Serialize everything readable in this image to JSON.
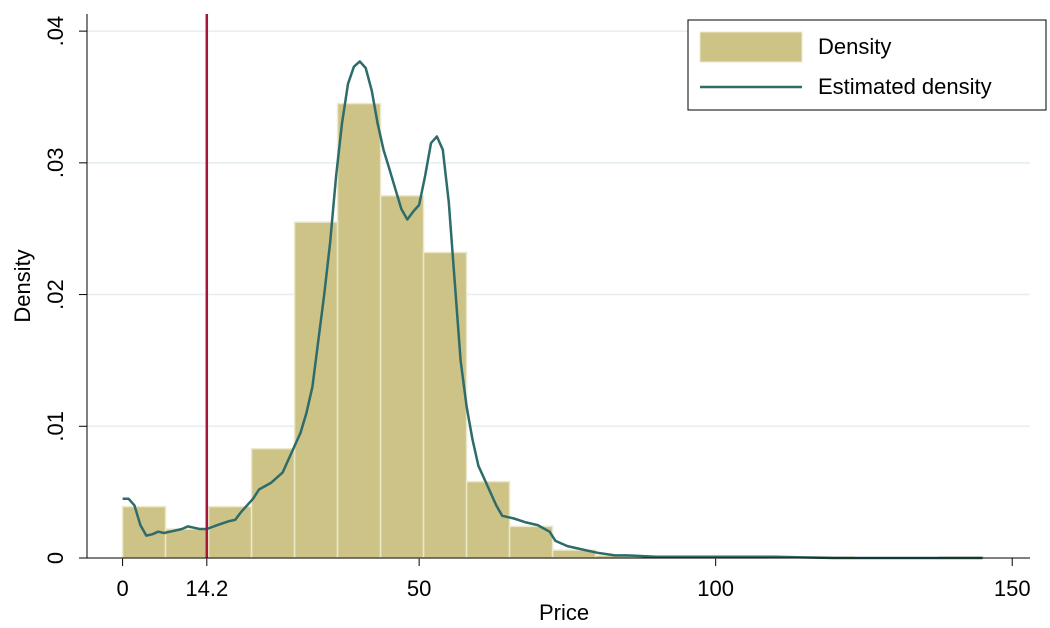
{
  "chart_data": {
    "type": "histogram",
    "x_label": "Price",
    "y_label": "Density",
    "bins": [
      0,
      7.25,
      14.5,
      21.75,
      29,
      36.25,
      43.5,
      50.75,
      58,
      65.25,
      72.5,
      79.75,
      87,
      94.25,
      101.5,
      108.75,
      116,
      123.25,
      130.5,
      137.75,
      145
    ],
    "series": [
      {
        "name": "Density",
        "color": "#cdc386",
        "values": [
          0.0039,
          0.0022,
          0.0039,
          0.0083,
          0.0255,
          0.0345,
          0.0275,
          0.0232,
          0.0058,
          0.0024,
          0.0006,
          0.0002,
          0.0001,
          0.0001,
          0.0001,
          0,
          0.0001,
          0,
          0,
          0.0001
        ]
      },
      {
        "name": "Estimated density",
        "color": "#2e6b6b",
        "x": [
          0,
          1,
          2,
          3,
          4,
          5,
          6,
          7,
          8,
          10,
          11,
          12,
          13,
          14.2,
          16,
          18,
          19,
          20,
          22,
          23,
          25,
          27,
          28,
          30,
          31,
          32,
          33,
          34,
          35,
          36,
          37,
          38,
          39,
          40,
          41,
          42,
          43,
          44,
          45,
          46,
          47,
          48,
          49,
          50,
          51,
          52,
          53,
          54,
          55,
          56,
          57,
          58,
          59,
          60,
          61,
          62,
          63,
          64,
          66,
          68,
          70,
          72,
          73,
          75,
          78,
          80,
          83,
          85,
          90,
          100,
          110,
          120,
          130,
          140,
          145
        ],
        "values": [
          0.0045,
          0.0045,
          0.004,
          0.0025,
          0.0017,
          0.0018,
          0.002,
          0.0019,
          0.002,
          0.0022,
          0.0024,
          0.0023,
          0.0022,
          0.0022,
          0.0025,
          0.0028,
          0.0029,
          0.0035,
          0.0045,
          0.0052,
          0.0057,
          0.0065,
          0.0075,
          0.0095,
          0.011,
          0.013,
          0.0165,
          0.02,
          0.024,
          0.029,
          0.033,
          0.036,
          0.0373,
          0.0377,
          0.0372,
          0.0355,
          0.033,
          0.031,
          0.0295,
          0.028,
          0.0265,
          0.0257,
          0.0263,
          0.0268,
          0.029,
          0.0315,
          0.032,
          0.031,
          0.027,
          0.021,
          0.015,
          0.0115,
          0.009,
          0.007,
          0.006,
          0.005,
          0.004,
          0.0032,
          0.003,
          0.0027,
          0.0025,
          0.002,
          0.0013,
          0.0009,
          0.0006,
          0.0004,
          0.0002,
          0.0002,
          0.0001,
          0.0001,
          0.0001,
          0,
          0,
          0,
          0
        ]
      }
    ],
    "vline": {
      "value": 14.2,
      "color": "#a6163a"
    },
    "xlim": [
      -6,
      153
    ],
    "ylim": [
      0,
      0.0413
    ],
    "xticks": [
      0,
      14.2,
      50,
      100,
      150
    ],
    "yticks": [
      0,
      {
        "value": 0.01,
        "label": ".01"
      },
      {
        "value": 0.02,
        "label": ".02"
      },
      {
        "value": 0.03,
        "label": ".03"
      },
      {
        "value": 0.04,
        "label": ".04"
      }
    ],
    "grid": true,
    "legend": "top-right"
  }
}
